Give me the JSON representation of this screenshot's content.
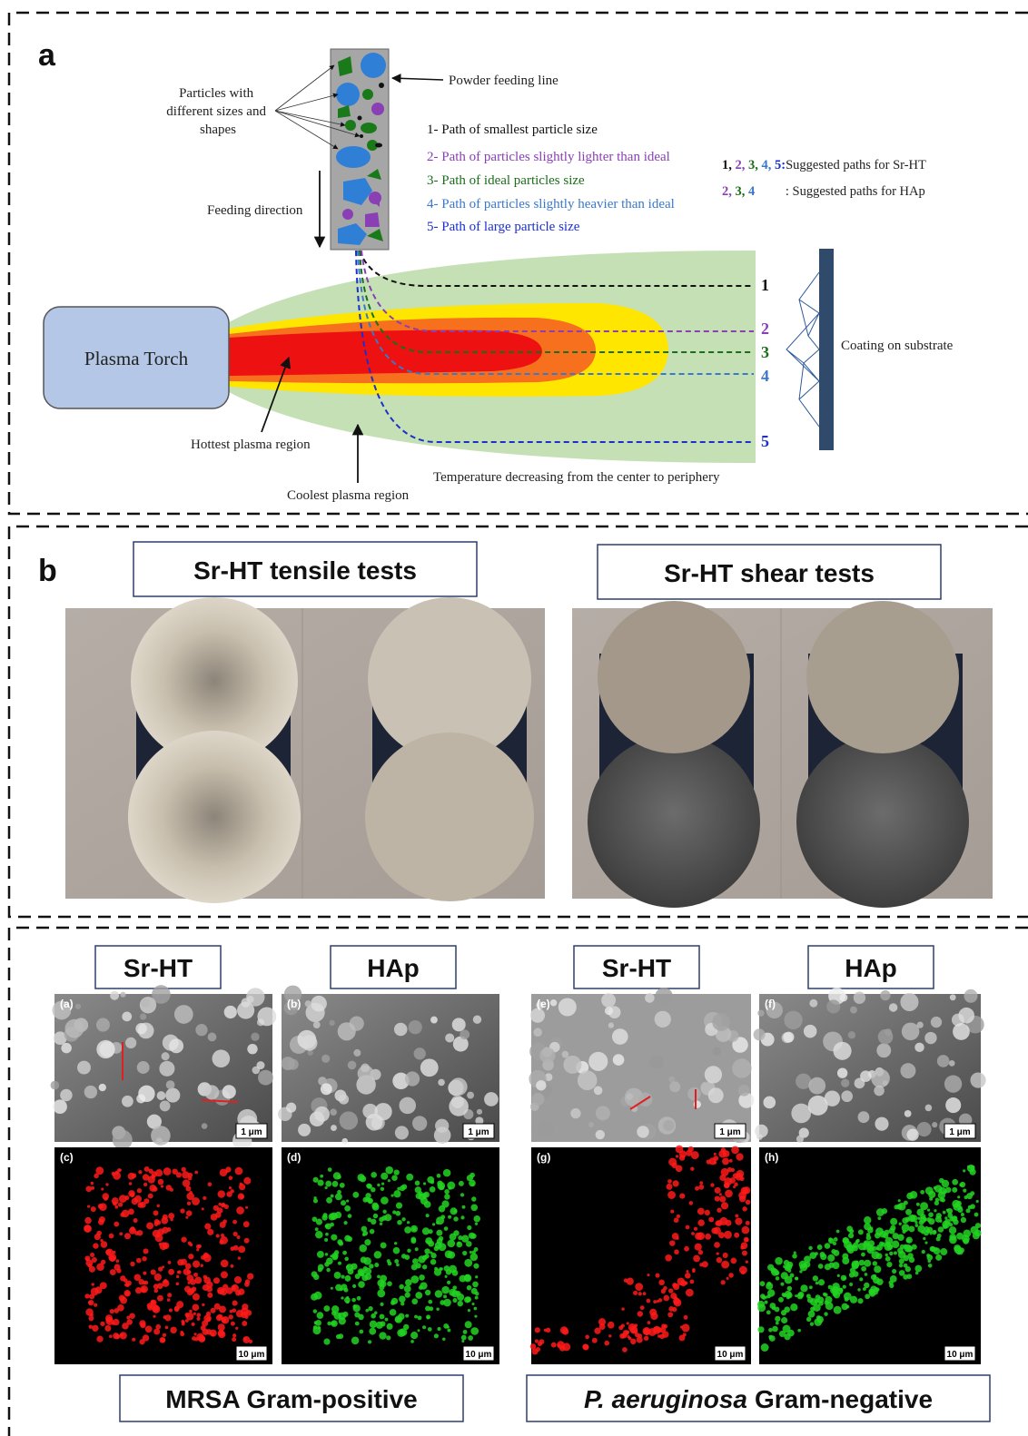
{
  "panel_a": {
    "label": "a",
    "particles_label": [
      "Particles with",
      "different sizes and",
      "shapes"
    ],
    "powder_feeding_line": "Powder feeding line",
    "feeding_direction": "Feeding direction",
    "path_legend": [
      "1- Path of smallest particle size",
      "2- Path of particles slightly lighter than ideal",
      "3- Path of ideal particles size",
      "4- Path of particles slightly heavier than ideal",
      "5- Path of large particle size"
    ],
    "suggested_srht": {
      "paths": [
        "1,",
        "2,",
        "3,",
        "4,",
        "5:"
      ],
      "text": "Suggested paths for Sr-HT"
    },
    "suggested_hap": {
      "paths": [
        "2,",
        "3,",
        "4"
      ],
      "text": ": Suggested paths for HAp"
    },
    "plasma_torch": "Plasma Torch",
    "path_numbers": [
      "1",
      "2",
      "3",
      "4",
      "5"
    ],
    "coating": "Coating on substrate",
    "hottest": "Hottest plasma region",
    "coolest": "Coolest plasma region",
    "temperature_note": "Temperature decreasing from the center to periphery"
  },
  "panel_b": {
    "label": "b",
    "tensile_title": "Sr-HT tensile tests",
    "shear_title": "Sr-HT shear tests"
  },
  "panel_c": {
    "column_titles": [
      "Sr-HT",
      "HAp",
      "Sr-HT",
      "HAp"
    ],
    "image_labels": [
      "(a)",
      "(b)",
      "(c)",
      "(d)",
      "(e)",
      "(f)",
      "(g)",
      "(h)"
    ],
    "scale_bars": [
      "1 μm",
      "1 μm",
      "10 μm",
      "10 μm",
      "1 μm",
      "1 μm",
      "10 μm",
      "10 μm"
    ],
    "mrsa_caption": "MRSA Gram-positive",
    "pa_caption": [
      {
        "text": "P. aeruginosa",
        "italic": true
      },
      {
        "text": "Gram-negative",
        "italic": false
      }
    ]
  }
}
